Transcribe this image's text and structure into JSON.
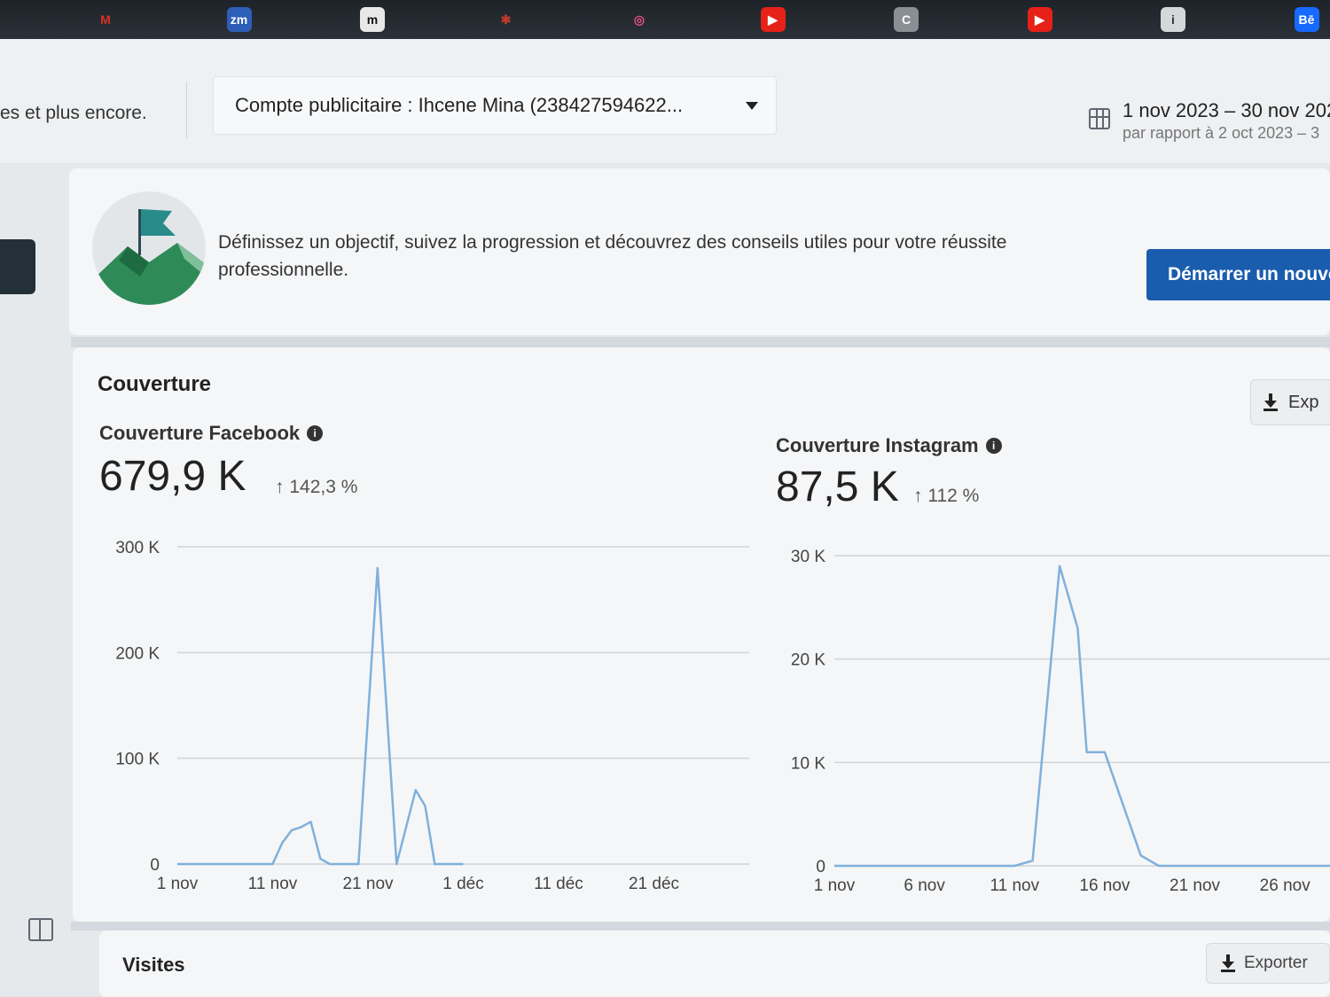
{
  "taskbar": {
    "icons": [
      {
        "name": "gmail-icon",
        "glyph": "M",
        "color": "#d93025",
        "bg": "transparent"
      },
      {
        "name": "zoom-icon",
        "glyph": "zm",
        "color": "#ffffff",
        "bg": "#2d5fb8"
      },
      {
        "name": "m-app-icon",
        "glyph": "m",
        "color": "#111111",
        "bg": "#e8e8e8"
      },
      {
        "name": "bug-icon",
        "glyph": "✱",
        "color": "#c0392b",
        "bg": "transparent"
      },
      {
        "name": "dribbble-icon",
        "glyph": "◎",
        "color": "#ea4c89",
        "bg": "transparent"
      },
      {
        "name": "youtube-icon",
        "glyph": "▶",
        "color": "#ffffff",
        "bg": "#e62117"
      },
      {
        "name": "c-app-icon",
        "glyph": "C",
        "color": "#ffffff",
        "bg": "#8a8f95"
      },
      {
        "name": "youtube-icon-2",
        "glyph": "▶",
        "color": "#ffffff",
        "bg": "#e62117"
      },
      {
        "name": "info-app-icon",
        "glyph": "i",
        "color": "#333333",
        "bg": "#d5d8db"
      },
      {
        "name": "behance-icon",
        "glyph": "Bē",
        "color": "#ffffff",
        "bg": "#1769ff"
      }
    ]
  },
  "header": {
    "left_text": "es et plus encore.",
    "account_select": "Compte publicitaire : Ihcene Mina (238427594622...",
    "date_range": "1 nov 2023 – 30 nov 202",
    "comparison": "par rapport à 2 oct 2023 – 3"
  },
  "goal_banner": {
    "text": "Définissez un objectif, suivez la progression et découvrez des conseils utiles pour votre réussite professionnelle.",
    "button": "Démarrer un nouve",
    "colors": {
      "button": "#1a5cad"
    }
  },
  "reach": {
    "title": "Couverture",
    "export": "Exp",
    "facebook": {
      "label": "Couverture Facebook",
      "value": "679,9 K",
      "change": "↑ 142,3 %"
    },
    "instagram": {
      "label": "Couverture Instagram",
      "value": "87,5 K",
      "change": "↑ 112 %"
    }
  },
  "visits": {
    "title": "Visites",
    "export": "Exporter"
  },
  "chart_data": [
    {
      "type": "line",
      "ylim": [
        0,
        300000
      ],
      "y_ticks": [
        {
          "v": 0,
          "label": "0"
        },
        {
          "v": 100000,
          "label": "100 K"
        },
        {
          "v": 200000,
          "label": "200 K"
        },
        {
          "v": 300000,
          "label": "300 K"
        }
      ],
      "x_ticks": [
        "1 nov",
        "11 nov",
        "21 nov",
        "1 déc",
        "11 déc",
        "21 déc"
      ],
      "x_tick_days": [
        0,
        10,
        20,
        30,
        40,
        50
      ],
      "x_range_days": [
        0,
        60
      ],
      "series": [
        {
          "color": "#7fb0dc",
          "points": [
            [
              0,
              0
            ],
            [
              10,
              0
            ],
            [
              11,
              20000
            ],
            [
              12,
              32000
            ],
            [
              13,
              35000
            ],
            [
              14,
              40000
            ],
            [
              15,
              5000
            ],
            [
              16,
              0
            ],
            [
              19,
              0
            ],
            [
              21,
              280000
            ],
            [
              23,
              0
            ],
            [
              25,
              70000
            ],
            [
              26,
              55000
            ],
            [
              27,
              0
            ],
            [
              30,
              0
            ]
          ]
        }
      ]
    },
    {
      "type": "line",
      "ylim": [
        0,
        30000
      ],
      "y_ticks": [
        {
          "v": 0,
          "label": "0"
        },
        {
          "v": 10000,
          "label": "10 K"
        },
        {
          "v": 20000,
          "label": "20 K"
        },
        {
          "v": 30000,
          "label": "30 K"
        }
      ],
      "x_ticks": [
        "1 nov",
        "6 nov",
        "11 nov",
        "16 nov",
        "21 nov",
        "26 nov"
      ],
      "x_tick_days": [
        0,
        5,
        10,
        15,
        20,
        25
      ],
      "x_range_days": [
        0,
        27.5
      ],
      "series": [
        {
          "color": "#7fb0dc",
          "points": [
            [
              0,
              0
            ],
            [
              10,
              0
            ],
            [
              11,
              500
            ],
            [
              12.5,
              29000
            ],
            [
              13.5,
              23000
            ],
            [
              14,
              11000
            ],
            [
              15,
              11000
            ],
            [
              16,
              6000
            ],
            [
              17,
              1000
            ],
            [
              18,
              0
            ],
            [
              27.5,
              0
            ]
          ]
        }
      ]
    }
  ]
}
